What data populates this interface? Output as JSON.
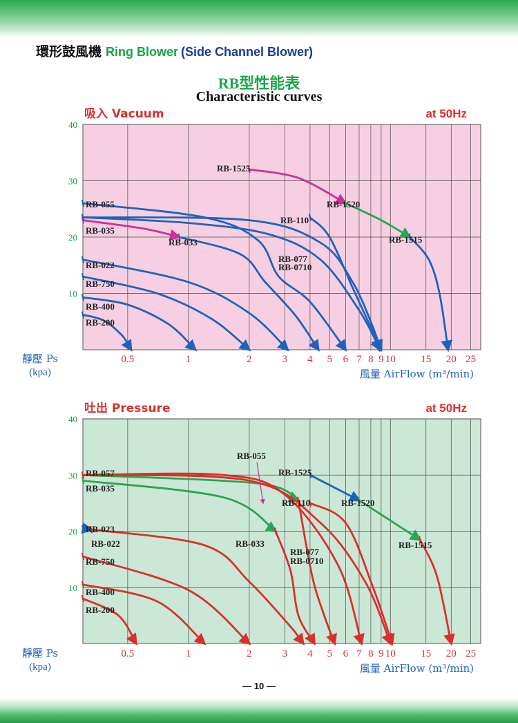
{
  "header": {
    "title_zh": "環形鼓風機",
    "title_en": "Ring Blower",
    "subtitle_en": "(Side Channel Blower)"
  },
  "chart_title": {
    "main": "RB型性能表",
    "sub": "Characteristic curves"
  },
  "colors": {
    "vacuum_bg": "#f6d0e2",
    "pressure_bg": "#cbe7d5",
    "blue": "#1f63b8",
    "magenta": "#cc2f98",
    "green": "#29a651",
    "red": "#d8302d",
    "label_red": "#d8302d"
  },
  "page_number": "— 10 —",
  "chart_data": [
    {
      "type": "line",
      "name": "vacuum",
      "title": "吸入 Vacuum",
      "freq": "at 50Hz",
      "ylabel": "靜壓 Ps",
      "yunit": "(kpa)",
      "xlabel": "風量 AirFlow",
      "xunit": "(m³/min)",
      "x_scale": "log",
      "xlim": [
        0.3,
        28
      ],
      "ylim": [
        0,
        40
      ],
      "yticks": [
        10,
        20,
        30,
        40
      ],
      "xticks": [
        0.5,
        1,
        2,
        3,
        4,
        5,
        6,
        7,
        8,
        9,
        10,
        15,
        20,
        25
      ],
      "xtick_labels": [
        "0.5",
        "1",
        "2",
        "3",
        "4",
        "5",
        "6",
        "7",
        "8",
        "9",
        "10",
        "15",
        "20",
        "25"
      ],
      "grid": true,
      "series": [
        {
          "name": "RB-200",
          "color": "blue",
          "points": [
            [
              0.3,
              6.2
            ],
            [
              0.38,
              5.2
            ],
            [
              0.47,
              2.5
            ],
            [
              0.52,
              0
            ]
          ]
        },
        {
          "name": "RB-400",
          "color": "blue",
          "points": [
            [
              0.3,
              9.3
            ],
            [
              0.5,
              8
            ],
            [
              0.8,
              4.5
            ],
            [
              1.08,
              0
            ]
          ]
        },
        {
          "name": "RB-750",
          "color": "blue",
          "points": [
            [
              0.3,
              13
            ],
            [
              0.7,
              10
            ],
            [
              1.3,
              5.5
            ],
            [
              2,
              0
            ]
          ]
        },
        {
          "name": "RB-022",
          "color": "blue",
          "points": [
            [
              0.3,
              16
            ],
            [
              1,
              12
            ],
            [
              2,
              6.5
            ],
            [
              3.1,
              0
            ]
          ]
        },
        {
          "name": "RB-033",
          "color": "blue",
          "points": [
            [
              0.9,
              20
            ],
            [
              1.8,
              17
            ],
            [
              2.4,
              12
            ],
            [
              3.4,
              6
            ],
            [
              4.4,
              0
            ]
          ]
        },
        {
          "name": "RB-035",
          "color": "magenta",
          "points": [
            [
              0.3,
              23
            ],
            [
              0.6,
              21.5
            ],
            [
              0.9,
              20
            ]
          ]
        },
        {
          "name": "RB-055",
          "color": "blue",
          "points": [
            [
              0.3,
              26
            ],
            [
              1.2,
              23.5
            ],
            [
              2.2,
              19.5
            ],
            [
              2.8,
              13
            ],
            [
              4,
              8.5
            ],
            [
              6,
              0
            ]
          ]
        },
        {
          "name": "RB-077",
          "color": "blue",
          "points": [
            [
              0.3,
              23.5
            ],
            [
              2,
              23
            ],
            [
              4.5,
              19
            ],
            [
              6.5,
              12
            ],
            [
              8.4,
              3
            ],
            [
              8.8,
              0
            ]
          ]
        },
        {
          "name": "RB-0710",
          "color": "blue",
          "points": [
            [
              0.3,
              23.5
            ],
            [
              1,
              22.5
            ],
            [
              2.5,
              20.5
            ],
            [
              4.5,
              16
            ],
            [
              7,
              7
            ],
            [
              8.9,
              0
            ]
          ]
        },
        {
          "name": "RB-110",
          "color": "blue",
          "points": [
            [
              4,
              23.5
            ],
            [
              5,
              20
            ],
            [
              6.5,
              11
            ],
            [
              8,
              4
            ],
            [
              9,
              0
            ]
          ]
        },
        {
          "name": "RB-1525",
          "color": "magenta",
          "points": [
            [
              2,
              32
            ],
            [
              3.5,
              30.5
            ],
            [
              6,
              26
            ]
          ]
        },
        {
          "name": "RB-1520",
          "color": "green",
          "points": [
            [
              6,
              26
            ],
            [
              9,
              23
            ],
            [
              12.5,
              20
            ]
          ]
        },
        {
          "name": "RB-1515",
          "color": "blue",
          "points": [
            [
              12.5,
              20
            ],
            [
              15.5,
              16
            ],
            [
              17.5,
              10
            ],
            [
              19.3,
              0
            ]
          ]
        }
      ]
    },
    {
      "type": "line",
      "name": "pressure",
      "title": "吐出 Pressure",
      "freq": "at 50Hz",
      "ylabel": "靜壓 Ps",
      "yunit": "(kpa)",
      "xlabel": "風量 AirFlow",
      "xunit": "(m³/min)",
      "x_scale": "log",
      "xlim": [
        0.3,
        28
      ],
      "ylim": [
        0,
        40
      ],
      "yticks": [
        10,
        20,
        30,
        40
      ],
      "xticks": [
        0.5,
        1,
        2,
        3,
        4,
        5,
        6,
        7,
        8,
        9,
        10,
        15,
        20,
        25
      ],
      "xtick_labels": [
        "0.5",
        "1",
        "2",
        "3",
        "4",
        "5",
        "6",
        "7",
        "8",
        "9",
        "10",
        "15",
        "20",
        "25"
      ],
      "grid": true,
      "series": [
        {
          "name": "RB-200",
          "color": "red",
          "points": [
            [
              0.3,
              8
            ],
            [
              0.45,
              5
            ],
            [
              0.55,
              0
            ]
          ]
        },
        {
          "name": "RB-400",
          "color": "red",
          "points": [
            [
              0.3,
              10.5
            ],
            [
              0.7,
              7.5
            ],
            [
              1.2,
              0
            ]
          ]
        },
        {
          "name": "RB-750",
          "color": "red",
          "points": [
            [
              0.3,
              15.5
            ],
            [
              1,
              9.5
            ],
            [
              2,
              0
            ]
          ]
        },
        {
          "name": "RB-022",
          "color": "red",
          "points": [
            [
              0.33,
              20.3
            ],
            [
              1.2,
              17.5
            ],
            [
              2,
              11
            ],
            [
              3.2,
              3
            ],
            [
              3.7,
              0
            ]
          ]
        },
        {
          "name": "RB-023",
          "color": "blue",
          "points": [
            [
              0.3,
              20.5
            ],
            [
              0.33,
              20.3
            ]
          ]
        },
        {
          "name": "RB-035",
          "color": "green",
          "points": [
            [
              0.3,
              29
            ],
            [
              1.5,
              26
            ],
            [
              2.7,
              20
            ]
          ]
        },
        {
          "name": "RB-033",
          "color": "red",
          "points": [
            [
              2.7,
              20
            ],
            [
              3.2,
              13
            ],
            [
              3.5,
              5
            ],
            [
              4.2,
              0
            ]
          ]
        },
        {
          "name": "RB-057",
          "color": "green",
          "points": [
            [
              0.3,
              30
            ],
            [
              2.2,
              28.5
            ],
            [
              3.5,
              25.5
            ]
          ]
        },
        {
          "name": "RB-055",
          "color": "red",
          "points": [
            [
              3.5,
              25.5
            ],
            [
              4.1,
              12
            ],
            [
              4.7,
              5
            ],
            [
              5.3,
              0
            ]
          ]
        },
        {
          "name": "RB-077",
          "color": "red",
          "points": [
            [
              0.3,
              30
            ],
            [
              1.5,
              30
            ],
            [
              3,
              26.5
            ],
            [
              5.5,
              14
            ],
            [
              7.2,
              0
            ]
          ]
        },
        {
          "name": "RB-0710",
          "color": "red",
          "points": [
            [
              0.3,
              30
            ],
            [
              2,
              29
            ],
            [
              4.5,
              21.5
            ],
            [
              7.5,
              11
            ],
            [
              10,
              0
            ]
          ]
        },
        {
          "name": "RB-110",
          "color": "red",
          "points": [
            [
              4,
              25
            ],
            [
              6,
              21.5
            ],
            [
              8.2,
              10
            ],
            [
              10.2,
              0
            ]
          ]
        },
        {
          "name": "RB-1525",
          "color": "blue",
          "points": [
            [
              4,
              30
            ],
            [
              7,
              25.5
            ]
          ]
        },
        {
          "name": "RB-1520",
          "color": "green",
          "points": [
            [
              7,
              25.5
            ],
            [
              14,
              18.5
            ]
          ]
        },
        {
          "name": "RB-1515",
          "color": "red",
          "points": [
            [
              14,
              18.5
            ],
            [
              17,
              12
            ],
            [
              20,
              0
            ]
          ]
        }
      ]
    }
  ]
}
